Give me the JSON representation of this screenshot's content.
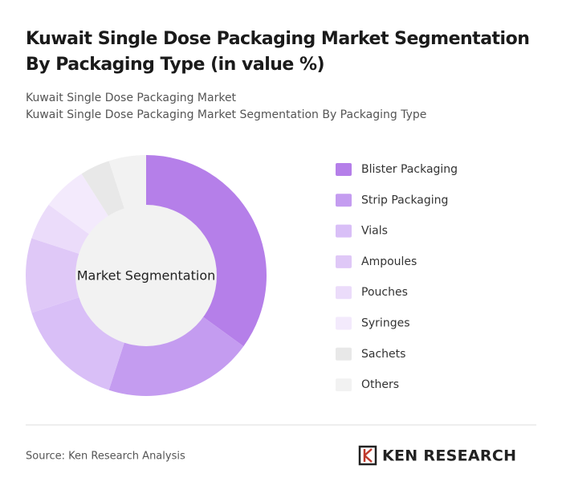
{
  "chart_data": {
    "type": "donut",
    "title": [
      "Kuwait Single Dose Packaging Market Segmentation",
      "By Packaging Type (in value %)"
    ],
    "subtitle": [
      "Kuwait Single Dose Packaging Market",
      "Kuwait Single Dose Packaging Market Segmentation By Packaging Type"
    ],
    "center_label": "Market Segmentation",
    "categories": [
      "Blister Packaging",
      "Strip Packaging",
      "Vials",
      "Ampoules",
      "Pouches",
      "Syringes",
      "Sachets",
      "Others"
    ],
    "values": [
      35,
      20,
      15,
      10,
      5,
      6,
      4,
      5
    ],
    "colors": [
      "#b57fe9",
      "#c49cf0",
      "#d9bff7",
      "#dfc8f7",
      "#ebdcfa",
      "#f3eafc",
      "#e8e8e8",
      "#f2f2f2"
    ],
    "legend": "right"
  },
  "footer": {
    "source": "Source: Ken Research Analysis",
    "logo": "KEN RESEARCH"
  }
}
